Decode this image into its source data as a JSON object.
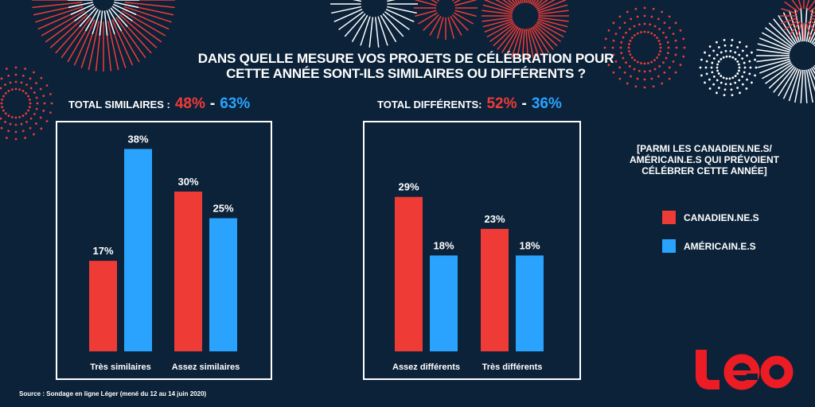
{
  "title_lines": [
    "DANS QUELLE MESURE VOS PROJETS DE CÉLÉBRATION POUR",
    "CETTE ANNÉE SONT-ILS SIMILAIRES OU DIFFÉRENTS ?"
  ],
  "totals": [
    {
      "label": "TOTAL SIMILAIRES :",
      "canada": "48%",
      "sep": "-",
      "usa": "63%"
    },
    {
      "label": "TOTAL DIFFÉRENTS:",
      "canada": "52%",
      "sep": "-",
      "usa": "36%"
    }
  ],
  "note_lines": [
    "[PARMI  LES CANADIEN.NE.S/",
    "AMÉRICAIN.E.S QUI PRÉVOIENT",
    "CÉLÉBRER CETTE ANNÉE]"
  ],
  "legend": [
    {
      "label": "CANADIEN.NE.S",
      "color": "#ef3b36"
    },
    {
      "label": "AMÉRICAIN.E.S",
      "color": "#2aa3ff"
    }
  ],
  "source": "Source : Sondage en ligne Léger (mené du 12 au 14 juin 2020)",
  "logo_text": "léo",
  "colors": {
    "background": "#0b2239",
    "canada": "#ef3b36",
    "usa": "#2aa3ff"
  },
  "chart_data": [
    {
      "type": "bar",
      "categories": [
        "Très similaires",
        "Assez similaires"
      ],
      "series": [
        {
          "name": "CANADIEN.NE.S",
          "values": [
            17,
            30
          ]
        },
        {
          "name": "AMÉRICAIN.E.S",
          "values": [
            38,
            25
          ]
        }
      ],
      "unit": "%",
      "ylim": [
        0,
        40
      ],
      "grid": false
    },
    {
      "type": "bar",
      "categories": [
        "Assez différents",
        "Très différents"
      ],
      "series": [
        {
          "name": "CANADIEN.NE.S",
          "values": [
            29,
            23
          ]
        },
        {
          "name": "AMÉRICAIN.E.S",
          "values": [
            18,
            18
          ]
        }
      ],
      "unit": "%",
      "ylim": [
        0,
        40
      ],
      "grid": false
    }
  ]
}
